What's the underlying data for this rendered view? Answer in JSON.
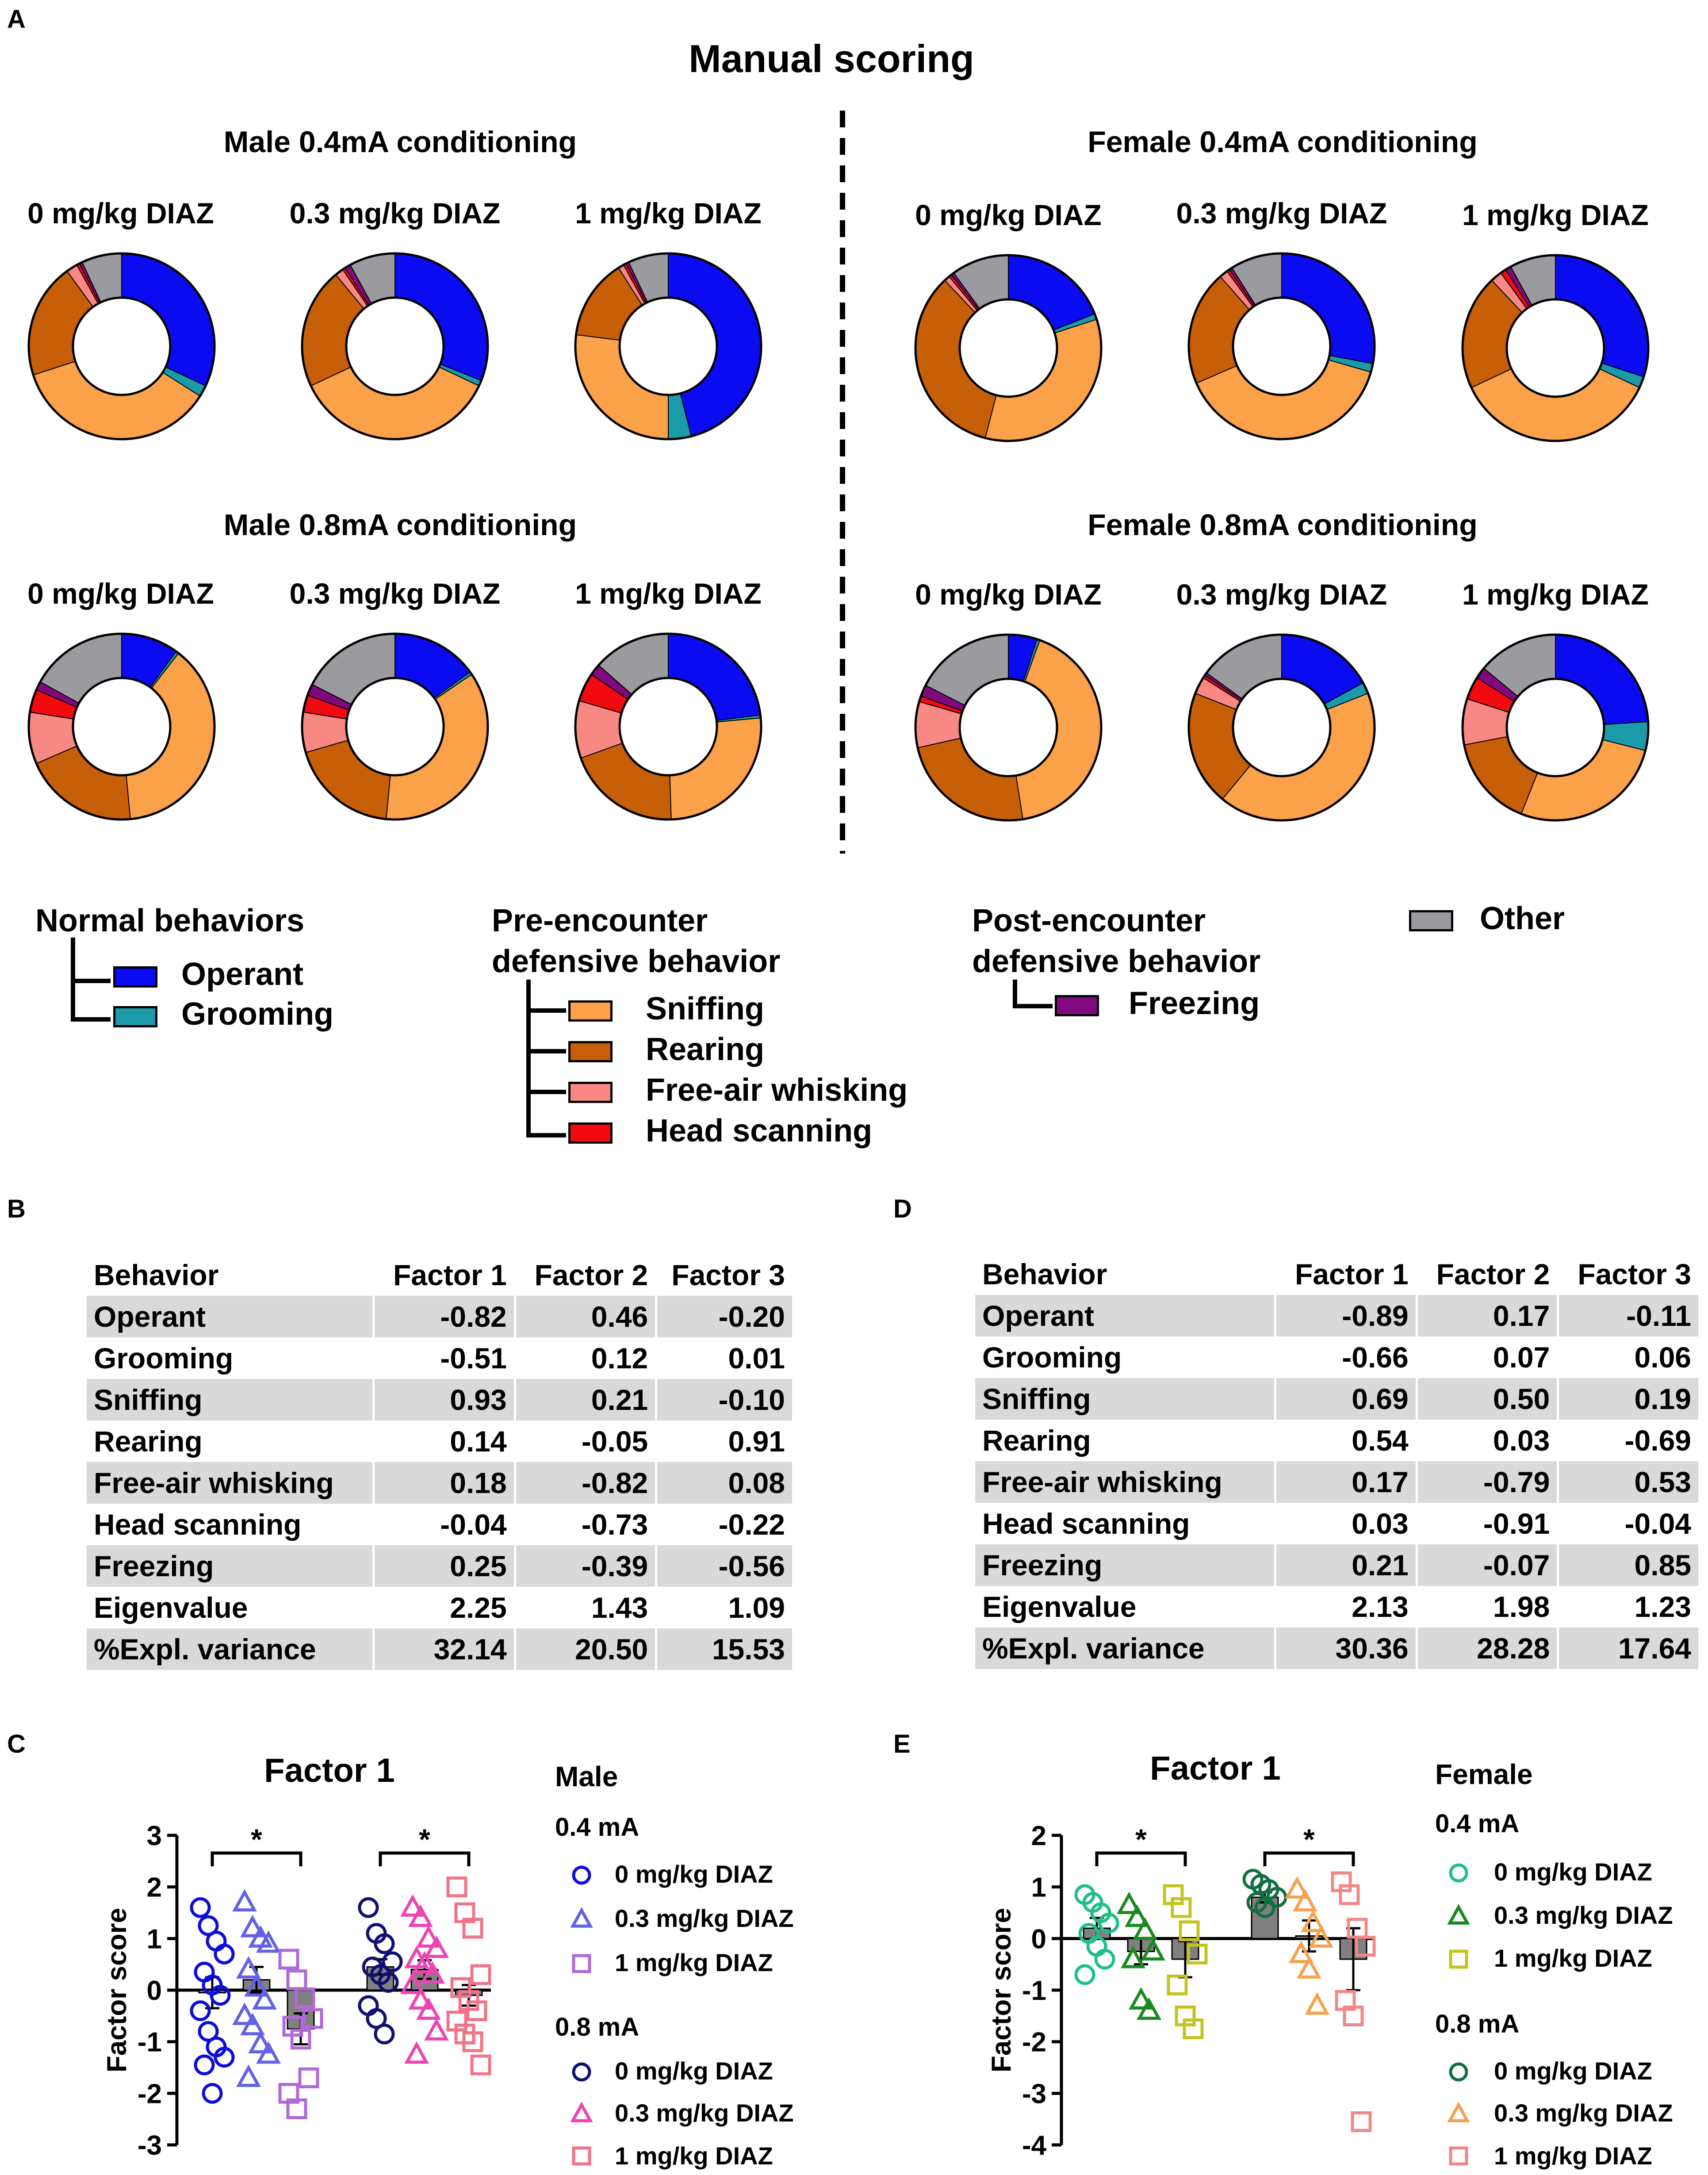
{
  "panel_a": {
    "letter": "A",
    "title": "Manual scoring",
    "colors": {
      "Operant": "#0b0bf2",
      "Grooming": "#1b9aaa",
      "Sniffing": "#fba14a",
      "Rearing": "#c75f08",
      "Free-air whisking": "#f78884",
      "Head scanning": "#f10a10",
      "Freezing": "#80097e",
      "Other": "#9a9a9f"
    },
    "groups": [
      {
        "title": "Male 0.4mA conditioning",
        "charts": [
          {
            "label": "0 mg/kg DIAZ",
            "slices": [
              {
                "name": "Operant",
                "value": 32
              },
              {
                "name": "Grooming",
                "value": 2
              },
              {
                "name": "Sniffing",
                "value": 36
              },
              {
                "name": "Rearing",
                "value": 20
              },
              {
                "name": "Free-air whisking",
                "value": 2
              },
              {
                "name": "Head scanning",
                "value": 0.5
              },
              {
                "name": "Freezing",
                "value": 0.5
              },
              {
                "name": "Other",
                "value": 7
              }
            ]
          },
          {
            "label": "0.3 mg/kg DIAZ",
            "slices": [
              {
                "name": "Operant",
                "value": 31
              },
              {
                "name": "Grooming",
                "value": 1
              },
              {
                "name": "Sniffing",
                "value": 36
              },
              {
                "name": "Rearing",
                "value": 21
              },
              {
                "name": "Free-air whisking",
                "value": 1.5
              },
              {
                "name": "Head scanning",
                "value": 0.5
              },
              {
                "name": "Freezing",
                "value": 1
              },
              {
                "name": "Other",
                "value": 8
              }
            ]
          },
          {
            "label": "1 mg/kg DIAZ",
            "slices": [
              {
                "name": "Operant",
                "value": 46
              },
              {
                "name": "Grooming",
                "value": 4
              },
              {
                "name": "Sniffing",
                "value": 27
              },
              {
                "name": "Rearing",
                "value": 14
              },
              {
                "name": "Free-air whisking",
                "value": 1
              },
              {
                "name": "Head scanning",
                "value": 0.5
              },
              {
                "name": "Freezing",
                "value": 0.5
              },
              {
                "name": "Other",
                "value": 7
              }
            ]
          }
        ]
      },
      {
        "title": "Female 0.4mA conditioning",
        "charts": [
          {
            "label": "0 mg/kg DIAZ",
            "slices": [
              {
                "name": "Operant",
                "value": 19
              },
              {
                "name": "Grooming",
                "value": 1
              },
              {
                "name": "Sniffing",
                "value": 34
              },
              {
                "name": "Rearing",
                "value": 34
              },
              {
                "name": "Free-air whisking",
                "value": 1
              },
              {
                "name": "Head scanning",
                "value": 0.5
              },
              {
                "name": "Freezing",
                "value": 0.5
              },
              {
                "name": "Other",
                "value": 10
              }
            ]
          },
          {
            "label": "0.3 mg/kg DIAZ",
            "slices": [
              {
                "name": "Operant",
                "value": 28
              },
              {
                "name": "Grooming",
                "value": 1.5
              },
              {
                "name": "Sniffing",
                "value": 39
              },
              {
                "name": "Rearing",
                "value": 20
              },
              {
                "name": "Free-air whisking",
                "value": 1.5
              },
              {
                "name": "Head scanning",
                "value": 0.5
              },
              {
                "name": "Freezing",
                "value": 0.5
              },
              {
                "name": "Other",
                "value": 9
              }
            ]
          },
          {
            "label": "1 mg/kg DIAZ",
            "slices": [
              {
                "name": "Operant",
                "value": 30
              },
              {
                "name": "Grooming",
                "value": 2
              },
              {
                "name": "Sniffing",
                "value": 36
              },
              {
                "name": "Rearing",
                "value": 20
              },
              {
                "name": "Free-air whisking",
                "value": 2
              },
              {
                "name": "Head scanning",
                "value": 1
              },
              {
                "name": "Freezing",
                "value": 1
              },
              {
                "name": "Other",
                "value": 8
              }
            ]
          }
        ]
      },
      {
        "title": "Male 0.8mA conditioning",
        "charts": [
          {
            "label": "0 mg/kg DIAZ",
            "slices": [
              {
                "name": "Operant",
                "value": 10
              },
              {
                "name": "Grooming",
                "value": 0.5
              },
              {
                "name": "Sniffing",
                "value": 38
              },
              {
                "name": "Rearing",
                "value": 20
              },
              {
                "name": "Free-air whisking",
                "value": 9
              },
              {
                "name": "Head scanning",
                "value": 4
              },
              {
                "name": "Freezing",
                "value": 1.5
              },
              {
                "name": "Other",
                "value": 17
              }
            ]
          },
          {
            "label": "0.3 mg/kg DIAZ",
            "slices": [
              {
                "name": "Operant",
                "value": 15
              },
              {
                "name": "Grooming",
                "value": 0.5
              },
              {
                "name": "Sniffing",
                "value": 36
              },
              {
                "name": "Rearing",
                "value": 19
              },
              {
                "name": "Free-air whisking",
                "value": 7
              },
              {
                "name": "Head scanning",
                "value": 3
              },
              {
                "name": "Freezing",
                "value": 2
              },
              {
                "name": "Other",
                "value": 17.5
              }
            ]
          },
          {
            "label": "1 mg/kg DIAZ",
            "slices": [
              {
                "name": "Operant",
                "value": 23
              },
              {
                "name": "Grooming",
                "value": 0.5
              },
              {
                "name": "Sniffing",
                "value": 26
              },
              {
                "name": "Rearing",
                "value": 20
              },
              {
                "name": "Free-air whisking",
                "value": 10
              },
              {
                "name": "Head scanning",
                "value": 5
              },
              {
                "name": "Freezing",
                "value": 2
              },
              {
                "name": "Other",
                "value": 13.5
              }
            ]
          }
        ]
      },
      {
        "title": "Female 0.8mA conditioning",
        "charts": [
          {
            "label": "0 mg/kg DIAZ",
            "slices": [
              {
                "name": "Operant",
                "value": 5
              },
              {
                "name": "Grooming",
                "value": 0.5
              },
              {
                "name": "Sniffing",
                "value": 42
              },
              {
                "name": "Rearing",
                "value": 24
              },
              {
                "name": "Free-air whisking",
                "value": 8
              },
              {
                "name": "Head scanning",
                "value": 1
              },
              {
                "name": "Freezing",
                "value": 2
              },
              {
                "name": "Other",
                "value": 17.5
              }
            ]
          },
          {
            "label": "0.3 mg/kg DIAZ",
            "slices": [
              {
                "name": "Operant",
                "value": 17
              },
              {
                "name": "Grooming",
                "value": 2
              },
              {
                "name": "Sniffing",
                "value": 42
              },
              {
                "name": "Rearing",
                "value": 20
              },
              {
                "name": "Free-air whisking",
                "value": 3
              },
              {
                "name": "Head scanning",
                "value": 0.5
              },
              {
                "name": "Freezing",
                "value": 0.5
              },
              {
                "name": "Other",
                "value": 15
              }
            ]
          },
          {
            "label": "1 mg/kg DIAZ",
            "slices": [
              {
                "name": "Operant",
                "value": 24
              },
              {
                "name": "Grooming",
                "value": 5
              },
              {
                "name": "Sniffing",
                "value": 27
              },
              {
                "name": "Rearing",
                "value": 16
              },
              {
                "name": "Free-air whisking",
                "value": 8
              },
              {
                "name": "Head scanning",
                "value": 4
              },
              {
                "name": "Freezing",
                "value": 2
              },
              {
                "name": "Other",
                "value": 14
              }
            ]
          }
        ]
      }
    ],
    "legend": {
      "normal_title": "Normal behaviors",
      "normal_items": [
        "Operant",
        "Grooming"
      ],
      "pre_title_1": "Pre-encounter",
      "pre_title_2": "defensive behavior",
      "pre_items": [
        "Sniffing",
        "Rearing",
        "Free-air whisking",
        "Head scanning"
      ],
      "post_title_1": "Post-encounter",
      "post_title_2": "defensive behavior",
      "post_items": [
        "Freezing"
      ],
      "other_item": "Other"
    }
  },
  "panel_b": {
    "letter": "B",
    "headers": [
      "Behavior",
      "Factor 1",
      "Factor 2",
      "Factor 3"
    ],
    "rows": [
      [
        "Operant",
        "-0.82",
        "0.46",
        "-0.20"
      ],
      [
        "Grooming",
        "-0.51",
        "0.12",
        "0.01"
      ],
      [
        "Sniffing",
        "0.93",
        "0.21",
        "-0.10"
      ],
      [
        "Rearing",
        "0.14",
        "-0.05",
        "0.91"
      ],
      [
        "Free-air whisking",
        "0.18",
        "-0.82",
        "0.08"
      ],
      [
        "Head scanning",
        "-0.04",
        "-0.73",
        "-0.22"
      ],
      [
        "Freezing",
        "0.25",
        "-0.39",
        "-0.56"
      ],
      [
        "Eigenvalue",
        "2.25",
        "1.43",
        "1.09"
      ],
      [
        "%Expl. variance",
        "32.14",
        "20.50",
        "15.53"
      ]
    ]
  },
  "panel_d": {
    "letter": "D",
    "headers": [
      "Behavior",
      "Factor 1",
      "Factor 2",
      "Factor 3"
    ],
    "rows": [
      [
        "Operant",
        "-0.89",
        "0.17",
        "-0.11"
      ],
      [
        "Grooming",
        "-0.66",
        "0.07",
        "0.06"
      ],
      [
        "Sniffing",
        "0.69",
        "0.50",
        "0.19"
      ],
      [
        "Rearing",
        "0.54",
        "0.03",
        "-0.69"
      ],
      [
        "Free-air whisking",
        "0.17",
        "-0.79",
        "0.53"
      ],
      [
        "Head scanning",
        "0.03",
        "-0.91",
        "-0.04"
      ],
      [
        "Freezing",
        "0.21",
        "-0.07",
        "0.85"
      ],
      [
        "Eigenvalue",
        "2.13",
        "1.98",
        "1.23"
      ],
      [
        "%Expl. variance",
        "30.36",
        "28.28",
        "17.64"
      ]
    ]
  },
  "chart_data": [
    {
      "panel": "C",
      "type": "scatter",
      "title": "Factor 1",
      "ylabel": "Factor score",
      "ylim": [
        -3,
        3
      ],
      "yticks": [
        "3",
        "2",
        "1",
        "0",
        "-1",
        "-2",
        "-3"
      ],
      "sex": "Male",
      "significance": [
        {
          "from": 0,
          "to": 2,
          "label": "*"
        },
        {
          "from": 3,
          "to": 5,
          "label": "*"
        }
      ],
      "groups_0_4mA_label": "0.4 mA",
      "groups_0_8mA_label": "0.8 mA",
      "series": [
        {
          "name": "0 mg/kg DIAZ",
          "current": "0.4 mA",
          "marker": "circle",
          "color": "#0c0cdb",
          "mean": -0.05,
          "sem": 0.3,
          "points": [
            1.6,
            1.25,
            0.95,
            0.7,
            0.35,
            0.1,
            -0.1,
            -0.4,
            -0.8,
            -1.1,
            -1.3,
            -1.45,
            -2.0
          ]
        },
        {
          "name": "0.3 mg/kg DIAZ",
          "current": "0.4 mA",
          "marker": "triangle",
          "color": "#6262e6",
          "mean": 0.2,
          "sem": 0.25,
          "points": [
            1.7,
            1.2,
            1.0,
            0.9,
            0.4,
            0.05,
            -0.2,
            -0.5,
            -0.7,
            -1.05,
            -1.25,
            -1.7
          ]
        },
        {
          "name": "1 mg/kg DIAZ",
          "current": "0.4 mA",
          "marker": "square",
          "color": "#b06ad6",
          "mean": -0.75,
          "sem": 0.3,
          "points": [
            0.6,
            0.2,
            -0.15,
            -0.55,
            -0.7,
            -0.95,
            -1.7,
            -2.0,
            -2.3
          ]
        },
        {
          "name": "0 mg/kg DIAZ",
          "current": "0.8 mA",
          "marker": "circle",
          "color": "#101070",
          "mean": 0.45,
          "sem": 0.15,
          "points": [
            1.6,
            1.1,
            0.9,
            0.55,
            0.45,
            0.3,
            0.15,
            -0.3,
            -0.55,
            -0.85
          ]
        },
        {
          "name": "0.3 mg/kg DIAZ",
          "current": "0.8 mA",
          "marker": "triangle",
          "color": "#ee44b3",
          "mean": 0.4,
          "sem": 0.18,
          "points": [
            1.6,
            1.4,
            1.0,
            0.8,
            0.6,
            0.5,
            0.3,
            0.1,
            -0.2,
            -0.4,
            -0.8,
            -1.25
          ]
        },
        {
          "name": "1 mg/kg DIAZ",
          "current": "0.8 mA",
          "marker": "square",
          "color": "#f07588",
          "mean": -0.1,
          "sem": 0.2,
          "points": [
            2.0,
            1.5,
            1.2,
            0.3,
            0.05,
            -0.2,
            -0.4,
            -0.6,
            -0.85,
            -1.0,
            -1.45
          ]
        }
      ]
    },
    {
      "panel": "E",
      "type": "scatter",
      "title": "Factor 1",
      "ylabel": "Factor score",
      "ylim": [
        -4,
        2
      ],
      "yticks": [
        "2",
        "1",
        "0",
        "-1",
        "-2",
        "-3",
        "-4"
      ],
      "sex": "Female",
      "significance": [
        {
          "from": 0,
          "to": 2,
          "label": "*"
        },
        {
          "from": 3,
          "to": 5,
          "label": "*"
        }
      ],
      "groups_0_4mA_label": "0.4 mA",
      "groups_0_8mA_label": "0.8 mA",
      "series": [
        {
          "name": "0 mg/kg DIAZ",
          "current": "0.4 mA",
          "marker": "circle",
          "color": "#1fbf86",
          "mean": 0.2,
          "sem": 0.2,
          "points": [
            0.85,
            0.7,
            0.5,
            0.3,
            0.1,
            -0.15,
            -0.4,
            -0.7
          ]
        },
        {
          "name": "0.3 mg/kg DIAZ",
          "current": "0.4 mA",
          "marker": "triangle",
          "color": "#1a8a20",
          "mean": -0.25,
          "sem": 0.25,
          "points": [
            0.65,
            0.4,
            0.15,
            -0.25,
            -0.4,
            -1.2,
            -1.4
          ]
        },
        {
          "name": "1 mg/kg DIAZ",
          "current": "0.4 mA",
          "marker": "square",
          "color": "#c4c41e",
          "mean": -0.4,
          "sem": 0.35,
          "points": [
            0.85,
            0.6,
            0.15,
            -0.3,
            -0.9,
            -1.5,
            -1.75
          ]
        },
        {
          "name": "0 mg/kg DIAZ",
          "current": "0.8 mA",
          "marker": "circle",
          "color": "#127040",
          "mean": 0.8,
          "sem": 0.1,
          "points": [
            1.15,
            1.05,
            0.95,
            0.8,
            0.7,
            0.6
          ]
        },
        {
          "name": "0.3 mg/kg DIAZ",
          "current": "0.8 mA",
          "marker": "triangle",
          "color": "#f6a24e",
          "mean": 0.05,
          "sem": 0.3,
          "points": [
            0.95,
            0.7,
            0.3,
            0.0,
            -0.3,
            -0.6,
            -1.3
          ]
        },
        {
          "name": "1 mg/kg DIAZ",
          "current": "0.8 mA",
          "marker": "square",
          "color": "#f08888",
          "mean": -0.4,
          "sem": 0.6,
          "points": [
            1.1,
            0.85,
            0.2,
            -0.15,
            -1.2,
            -1.5,
            -3.55
          ]
        }
      ]
    }
  ]
}
